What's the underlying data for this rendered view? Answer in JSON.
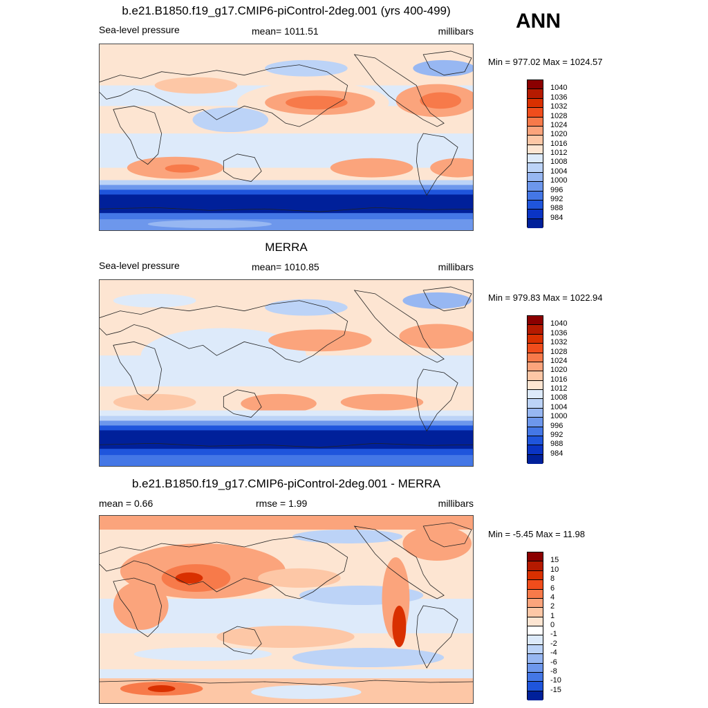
{
  "season": "ANN",
  "panels": [
    {
      "title": "b.e21.B1850.f19_g17.CMIP6-piControl-2deg.001 (yrs 400-499)",
      "left_label": "Sea-level pressure",
      "center_label": "mean= 1011.51",
      "right_label": "millibars",
      "minmax": "Min = 977.02 Max = 1024.57",
      "kind": "abs"
    },
    {
      "title": "MERRA",
      "left_label": "Sea-level pressure",
      "center_label": "mean= 1010.85",
      "right_label": "millibars",
      "minmax": "Min = 979.83 Max = 1022.94",
      "kind": "abs"
    },
    {
      "title": "b.e21.B1850.f19_g17.CMIP6-piControl-2deg.001 - MERRA",
      "left_label": "mean =   0.66",
      "center_label": "rmse =   1.99",
      "right_label": "millibars",
      "minmax": "Min =  -5.45 Max =  11.98",
      "kind": "diff"
    }
  ],
  "colorbars": {
    "abs": {
      "labels": [
        "1040",
        "1036",
        "1032",
        "1028",
        "1024",
        "1020",
        "1016",
        "1012",
        "1008",
        "1004",
        "1000",
        "996",
        "992",
        "988",
        "984"
      ],
      "colors": [
        "#8b0000",
        "#b51a00",
        "#d93000",
        "#f04d1c",
        "#f77a4a",
        "#fba47c",
        "#fdc7a6",
        "#fde5d2",
        "#ddeafa",
        "#bcd3f7",
        "#97b7f2",
        "#6d97ec",
        "#4477e6",
        "#1f55dc",
        "#0a34c4",
        "#00209a"
      ]
    },
    "diff": {
      "labels": [
        "15",
        "10",
        "8",
        "6",
        "4",
        "2",
        "1",
        "0",
        "-1",
        "-2",
        "-4",
        "-6",
        "-8",
        "-10",
        "-15"
      ],
      "colors": [
        "#8b0000",
        "#b51a00",
        "#d93000",
        "#f04d1c",
        "#f77a4a",
        "#fba47c",
        "#fdc7a6",
        "#fde5d2",
        "#ffffff",
        "#ddeafa",
        "#bcd3f7",
        "#97b7f2",
        "#6d97ec",
        "#4477e6",
        "#1f55dc",
        "#00209a"
      ]
    }
  }
}
